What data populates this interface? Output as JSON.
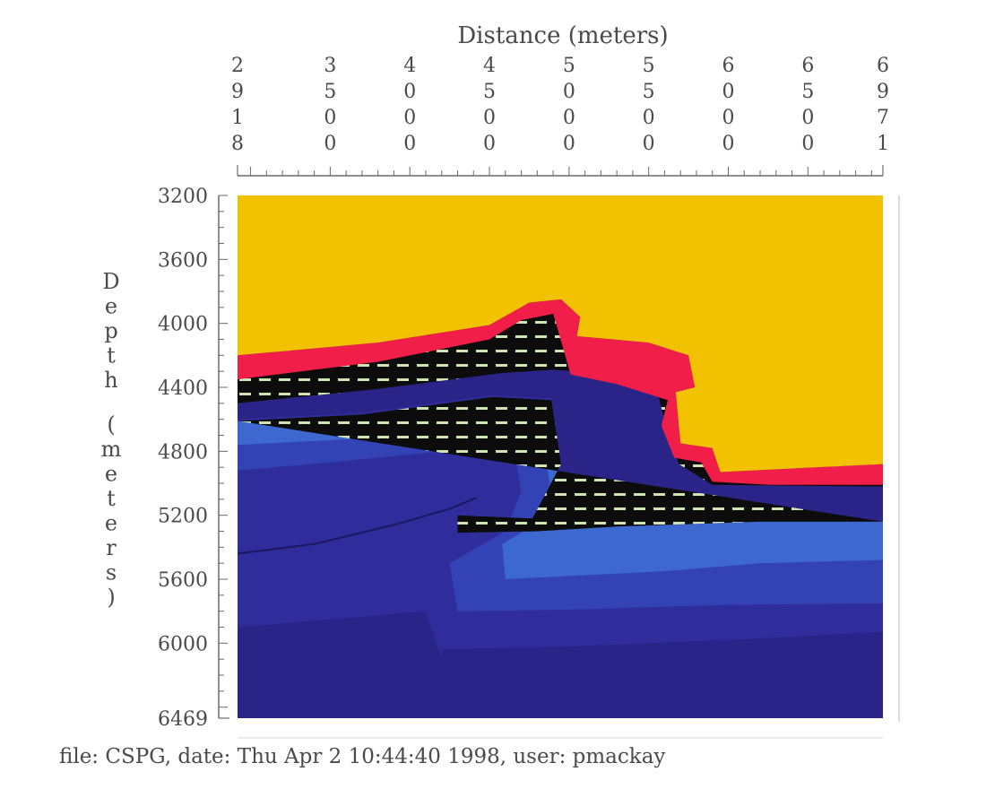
{
  "chart_data": {
    "type": "heatmap",
    "title": "",
    "xlabel": "Distance (meters)",
    "ylabel": "Depth (meters)",
    "xlim": [
      2918,
      6971
    ],
    "ylim": [
      3200,
      6469
    ],
    "y_inverted": true,
    "x_axis_position": "top",
    "grid": false,
    "x_ticks": [
      {
        "value": 2918,
        "label": "2918"
      },
      {
        "value": 3500,
        "label": "3500"
      },
      {
        "value": 4000,
        "label": "4000"
      },
      {
        "value": 4500,
        "label": "4500"
      },
      {
        "value": 5000,
        "label": "5000"
      },
      {
        "value": 5500,
        "label": "5500"
      },
      {
        "value": 6000,
        "label": "6000"
      },
      {
        "value": 6500,
        "label": "6500"
      },
      {
        "value": 6971,
        "label": "6971"
      }
    ],
    "y_ticks": [
      {
        "value": 3200,
        "label": "3200"
      },
      {
        "value": 3600,
        "label": "3600"
      },
      {
        "value": 4000,
        "label": "4000"
      },
      {
        "value": 4400,
        "label": "4400"
      },
      {
        "value": 4800,
        "label": "4800"
      },
      {
        "value": 5200,
        "label": "5200"
      },
      {
        "value": 5600,
        "label": "5600"
      },
      {
        "value": 6000,
        "label": "6000"
      },
      {
        "value": 6469,
        "label": "6469"
      }
    ],
    "colors": {
      "yellow": "#f2c200",
      "red": "#f21e4a",
      "black": "#0c0c0c",
      "dash": "#cfe6b2",
      "blue_light": "#3d68d0",
      "blue_mid": "#3343b6",
      "blue_dark": "#2f2c9c",
      "blue_deep": "#2b2488"
    },
    "regions": {
      "red_top": [
        [
          2918,
          4200
        ],
        [
          3800,
          4120
        ],
        [
          4500,
          4010
        ],
        [
          4750,
          3870
        ],
        [
          4950,
          3850
        ],
        [
          5070,
          3960
        ],
        [
          5050,
          4080
        ],
        [
          5500,
          4120
        ],
        [
          5750,
          4200
        ],
        [
          5790,
          4400
        ],
        [
          5670,
          4430
        ],
        [
          5700,
          4750
        ],
        [
          5900,
          4780
        ],
        [
          5950,
          4930
        ],
        [
          6971,
          4880
        ]
      ],
      "red_bottom": [
        [
          6971,
          5010
        ],
        [
          6260,
          5010
        ],
        [
          5900,
          4990
        ],
        [
          5830,
          4870
        ],
        [
          5660,
          4840
        ],
        [
          5580,
          4640
        ],
        [
          5620,
          4480
        ],
        [
          5300,
          4380
        ],
        [
          5010,
          4320
        ],
        [
          4930,
          4040
        ],
        [
          4900,
          3940
        ],
        [
          4700,
          3980
        ],
        [
          4500,
          4100
        ],
        [
          3800,
          4240
        ],
        [
          2918,
          4350
        ]
      ],
      "black_bottom": [
        [
          2918,
          4500
        ],
        [
          3800,
          4410
        ],
        [
          4580,
          4310
        ],
        [
          4900,
          4290
        ],
        [
          5530,
          4330
        ],
        [
          5590,
          4570
        ],
        [
          5690,
          4880
        ],
        [
          5900,
          5010
        ],
        [
          6971,
          5020
        ],
        [
          6971,
          5240
        ],
        [
          6200,
          5240
        ],
        [
          5300,
          5270
        ],
        [
          4800,
          5300
        ],
        [
          4300,
          5310
        ],
        [
          4300,
          5200
        ],
        [
          4770,
          5220
        ],
        [
          4950,
          4880
        ],
        [
          4890,
          4480
        ],
        [
          4520,
          4460
        ],
        [
          3700,
          4570
        ],
        [
          2918,
          4610
        ]
      ],
      "blue_light_band": [
        [
          2918,
          4610
        ],
        [
          3700,
          4570
        ],
        [
          4520,
          4460
        ],
        [
          4890,
          4480
        ],
        [
          4950,
          4880
        ],
        [
          4770,
          5220
        ],
        [
          4300,
          5200
        ],
        [
          4300,
          5310
        ],
        [
          4800,
          5300
        ],
        [
          5300,
          5270
        ],
        [
          6200,
          5240
        ],
        [
          6971,
          5240
        ],
        [
          6971,
          5480
        ],
        [
          6200,
          5500
        ],
        [
          5600,
          5550
        ],
        [
          5000,
          5580
        ],
        [
          4600,
          5600
        ],
        [
          4580,
          5380
        ],
        [
          4750,
          5280
        ],
        [
          4880,
          5000
        ],
        [
          4810,
          4650
        ],
        [
          4480,
          4620
        ],
        [
          3700,
          4720
        ],
        [
          2918,
          4760
        ]
      ],
      "blue_mid_band": [
        [
          2918,
          4760
        ],
        [
          3700,
          4720
        ],
        [
          4480,
          4620
        ],
        [
          4810,
          4650
        ],
        [
          4880,
          5000
        ],
        [
          4750,
          5280
        ],
        [
          4580,
          5380
        ],
        [
          4600,
          5600
        ],
        [
          5000,
          5580
        ],
        [
          5600,
          5550
        ],
        [
          6200,
          5500
        ],
        [
          6971,
          5480
        ],
        [
          6971,
          5750
        ],
        [
          6000,
          5760
        ],
        [
          5000,
          5790
        ],
        [
          4300,
          5800
        ],
        [
          4250,
          5500
        ],
        [
          4600,
          5300
        ],
        [
          4700,
          5050
        ],
        [
          4650,
          4760
        ],
        [
          4300,
          4790
        ],
        [
          3500,
          4870
        ],
        [
          2918,
          4920
        ]
      ],
      "blue_deep_zone": [
        [
          4200,
          6040
        ],
        [
          5000,
          6020
        ],
        [
          6000,
          5980
        ],
        [
          6971,
          5930
        ],
        [
          6971,
          6469
        ],
        [
          4200,
          6469
        ]
      ],
      "fold_line": [
        [
          2918,
          5440
        ],
        [
          3400,
          5380
        ],
        [
          3900,
          5260
        ],
        [
          4250,
          5160
        ],
        [
          4420,
          5090
        ]
      ]
    }
  },
  "footer_text": "file: CSPG, date: Thu Apr 2 10:44:40 1998, user: pmackay"
}
